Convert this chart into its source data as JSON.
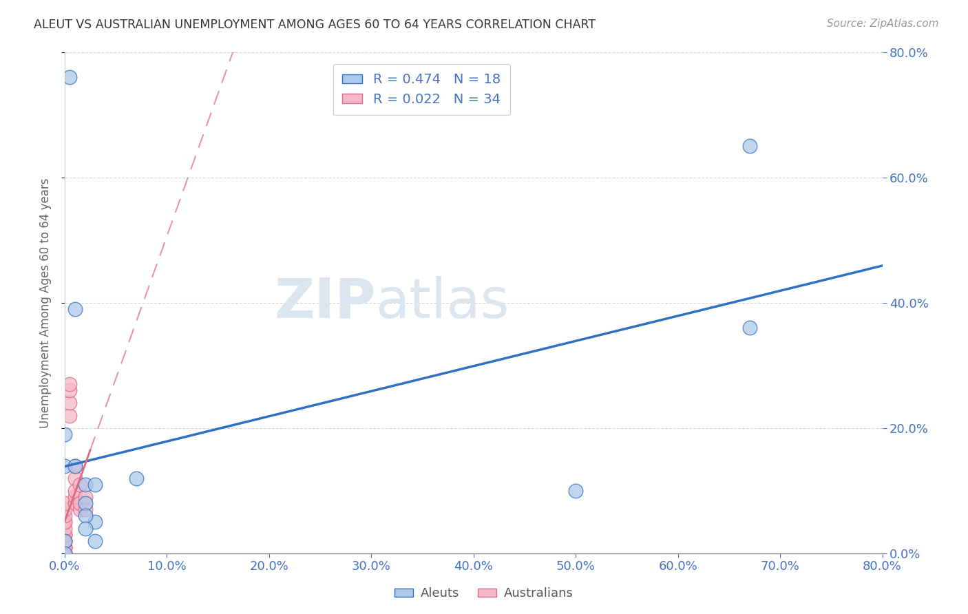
{
  "title": "ALEUT VS AUSTRALIAN UNEMPLOYMENT AMONG AGES 60 TO 64 YEARS CORRELATION CHART",
  "source": "Source: ZipAtlas.com",
  "ylabel": "Unemployment Among Ages 60 to 64 years",
  "xlim": [
    0.0,
    0.8
  ],
  "ylim": [
    0.0,
    0.8
  ],
  "xticks": [
    0.0,
    0.1,
    0.2,
    0.3,
    0.4,
    0.5,
    0.6,
    0.7,
    0.8
  ],
  "yticks": [
    0.0,
    0.2,
    0.4,
    0.6,
    0.8
  ],
  "aleuts_x": [
    0.005,
    0.0,
    0.0,
    0.01,
    0.01,
    0.02,
    0.02,
    0.03,
    0.03,
    0.02,
    0.02,
    0.03,
    0.5,
    0.67,
    0.67,
    0.0,
    0.0,
    0.07
  ],
  "aleuts_y": [
    0.76,
    0.19,
    0.14,
    0.39,
    0.14,
    0.11,
    0.08,
    0.11,
    0.05,
    0.06,
    0.04,
    0.02,
    0.1,
    0.65,
    0.36,
    0.02,
    0.0,
    0.12
  ],
  "australians_x": [
    0.0,
    0.0,
    0.0,
    0.0,
    0.0,
    0.0,
    0.0,
    0.0,
    0.0,
    0.0,
    0.0,
    0.0,
    0.0,
    0.0,
    0.0,
    0.0,
    0.0,
    0.0,
    0.0,
    0.0,
    0.005,
    0.005,
    0.005,
    0.005,
    0.01,
    0.01,
    0.01,
    0.01,
    0.01,
    0.015,
    0.015,
    0.015,
    0.02,
    0.02
  ],
  "australians_y": [
    0.0,
    0.0,
    0.0,
    0.0,
    0.0,
    0.0,
    0.01,
    0.01,
    0.01,
    0.02,
    0.02,
    0.02,
    0.03,
    0.03,
    0.04,
    0.05,
    0.05,
    0.06,
    0.07,
    0.08,
    0.22,
    0.24,
    0.26,
    0.27,
    0.08,
    0.09,
    0.1,
    0.12,
    0.14,
    0.07,
    0.08,
    0.11,
    0.07,
    0.09
  ],
  "aleut_R": 0.474,
  "aleut_N": 18,
  "australian_R": 0.022,
  "australian_N": 34,
  "aleut_color": "#adc8e8",
  "aleut_line_color": "#3070c0",
  "aleut_edge_color": "#3070c0",
  "australian_color": "#f5b8c8",
  "australian_line_color": "#e06880",
  "background_color": "#ffffff",
  "grid_color": "#cccccc",
  "title_color": "#333333",
  "axis_tick_color": "#4472c4",
  "watermark_color": "#dce6f0",
  "legend_color": "#4472c4"
}
